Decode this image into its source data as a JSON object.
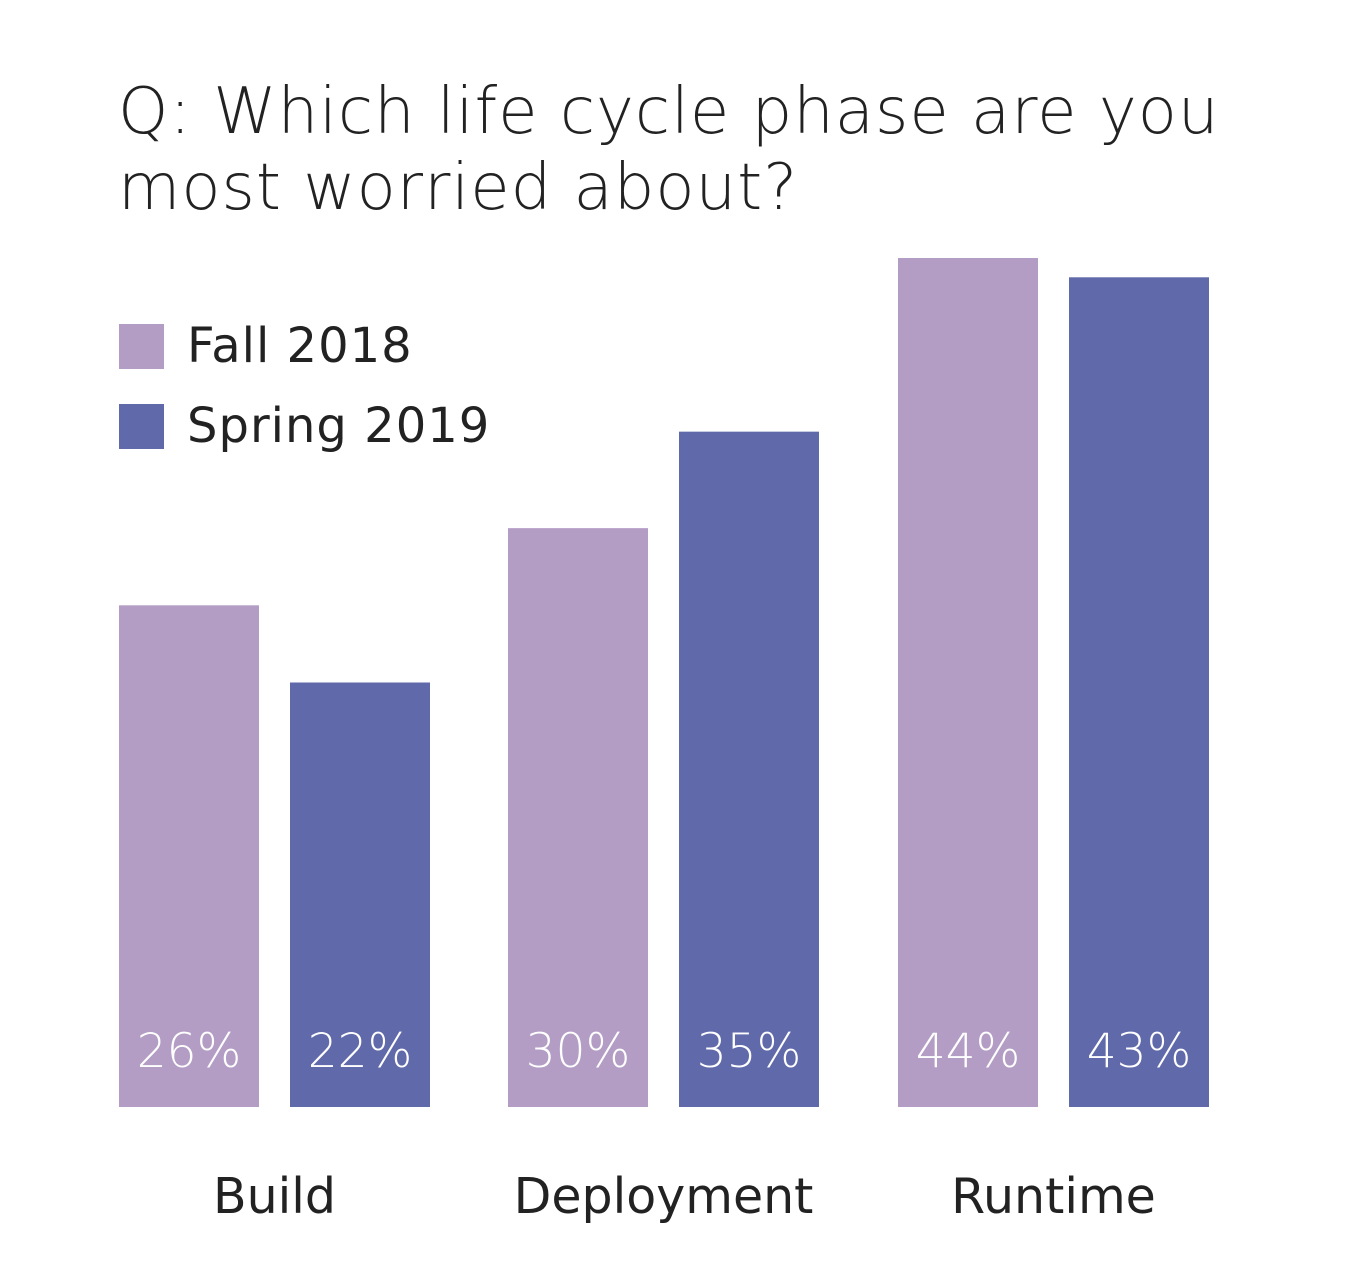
{
  "chart_data": {
    "type": "bar",
    "title": "Q: Which life cycle phase are you most worried about?",
    "title_lines": [
      "Q: Which life cycle phase are you",
      "most worried about?"
    ],
    "categories": [
      "Build",
      "Deployment",
      "Runtime"
    ],
    "series": [
      {
        "name": "Fall 2018",
        "color": "#b39dc4",
        "values": [
          26,
          30,
          44
        ],
        "labels": [
          "26%",
          "30%",
          "44%"
        ]
      },
      {
        "name": "Spring 2019",
        "color": "#6069a9",
        "values": [
          22,
          35,
          43
        ],
        "labels": [
          "22%",
          "35%",
          "43%"
        ]
      }
    ],
    "xlabel": "",
    "ylabel": "",
    "ylim": [
      0,
      44
    ],
    "unit": "%",
    "grid": false,
    "legend_placement": "top-left"
  }
}
